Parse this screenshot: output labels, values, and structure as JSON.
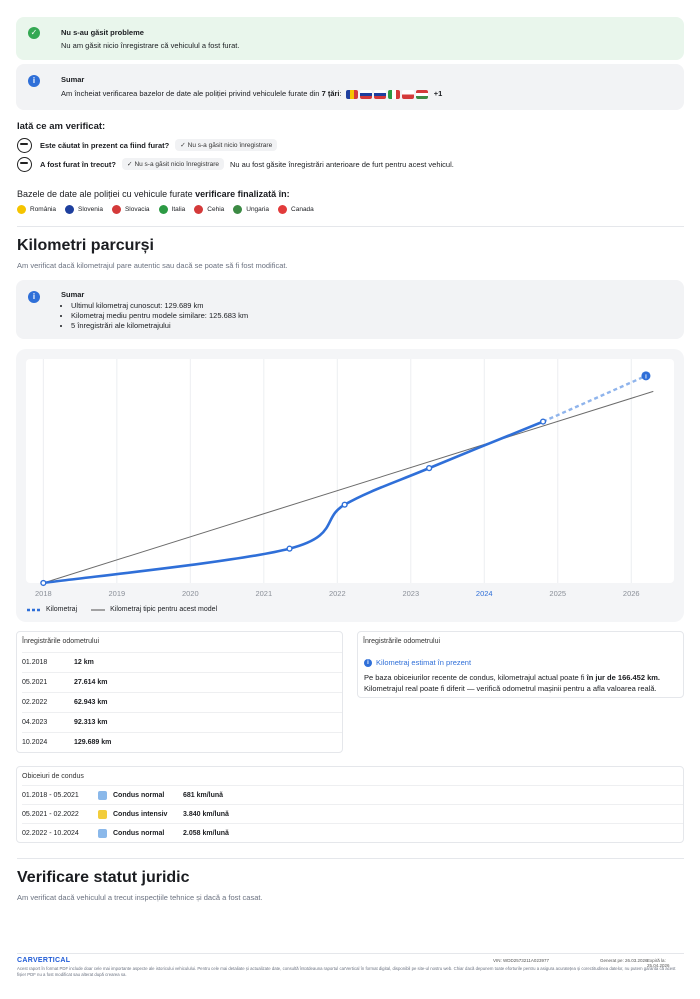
{
  "no_problems": {
    "title": "Nu s-au găsit probleme",
    "text": "Nu am găsit nicio înregistrare că vehiculul a fost furat."
  },
  "summary": {
    "title": "Sumar",
    "text_prefix": "Am încheiat verificarea bazelor de date ale poliției privind vehiculele furate din",
    "text_bold": "7 țări",
    "more": "+1"
  },
  "checked": {
    "heading": "Iată ce am verificat:",
    "q1": "Este căutat în prezent ca fiind furat?",
    "q1_chip": "Nu s-a găsit nicio înregistrare",
    "q2": "A fost furat în trecut?",
    "q2_chip": "Nu s-a găsit nicio înregistrare",
    "q2_note": "Nu au fost găsite înregistrări anterioare de furt pentru acest vehicul."
  },
  "databases": {
    "title_prefix": "Bazele de date ale poliției cu vehicule furate",
    "title_bold": "verificare finalizată în:",
    "countries": [
      {
        "name": "România",
        "color": "#f5c400"
      },
      {
        "name": "Slovenia",
        "color": "#1e3f9e"
      },
      {
        "name": "Slovacia",
        "color": "#d43a3a"
      },
      {
        "name": "Italia",
        "color": "#2c9a44"
      },
      {
        "name": "Cehia",
        "color": "#d43a3a"
      },
      {
        "name": "Ungaria",
        "color": "#3c8a44"
      },
      {
        "name": "Canada",
        "color": "#e23b3b"
      }
    ]
  },
  "mileage": {
    "title": "Kilometri parcurși",
    "subtitle": "Am verificat dacă kilometrajul pare autentic sau dacă se poate să fi fost modificat.",
    "summary_title": "Sumar",
    "bullets": [
      "Ultimul kilometraj cunoscut: 129.689 km",
      "Kilometraj mediu pentru modele similare: 125.683 km",
      "5 înregistrări ale kilometrajului"
    ]
  },
  "chart_data": {
    "type": "line",
    "x_ticks": [
      "2018",
      "2019",
      "2020",
      "2021",
      "2022",
      "2023",
      "2024",
      "2025",
      "2026"
    ],
    "highlight_tick": "2024",
    "series": [
      {
        "name": "Kilometraj",
        "color": "#2f6fd8",
        "points": [
          [
            2018.0,
            12
          ],
          [
            2021.35,
            27614
          ],
          [
            2022.1,
            62943
          ],
          [
            2023.25,
            92313
          ],
          [
            2024.8,
            129689
          ]
        ],
        "estimate": [
          2026.2,
          166452
        ]
      },
      {
        "name": "Kilometraj tipic pentru acest model",
        "color": "#6b6b6b",
        "points": [
          [
            2018.0,
            0
          ],
          [
            2026.3,
            154000
          ]
        ]
      }
    ],
    "xlim": [
      2017.9,
      2026.5
    ],
    "ylim": [
      0,
      180000
    ],
    "grid": true,
    "legend": "bottom-left"
  },
  "odometer": {
    "header": "Înregistrările odometrului",
    "rows": [
      {
        "date": "01.2018",
        "km": "12 km"
      },
      {
        "date": "05.2021",
        "km": "27.614 km"
      },
      {
        "date": "02.2022",
        "km": "62.943 km"
      },
      {
        "date": "04.2023",
        "km": "92.313 km"
      },
      {
        "date": "10.2024",
        "km": "129.689 km"
      }
    ]
  },
  "estimate": {
    "header": "Înregistrările odometrului",
    "title": "Kilometraj estimat în prezent",
    "text_prefix": "Pe baza obiceiurilor recente de condus, kilometrajul actual poate fi",
    "text_bold": "în jur de 166.452 km.",
    "text_suffix": "Kilometrajul real poate fi diferit — verifică odometrul mașinii pentru a afla valoarea reală."
  },
  "habits": {
    "header": "Obiceiuri de condus",
    "rows": [
      {
        "period": "01.2018 - 05.2021",
        "label": "Condus normal",
        "rate": "681 km/lună",
        "color": "#8ab8ea"
      },
      {
        "period": "05.2021 - 02.2022",
        "label": "Condus intensiv",
        "rate": "3.840 km/lună",
        "color": "#f2cd3c"
      },
      {
        "period": "02.2022 - 10.2024",
        "label": "Condus normal",
        "rate": "2.058 km/lună",
        "color": "#8ab8ea"
      }
    ]
  },
  "legal": {
    "title": "Verificare statut juridic",
    "subtitle": "Am verificat dacă vehiculul a trecut inspecțiile tehnice și dacă a fost casat."
  },
  "footer": {
    "logo": "CARVERTICAL",
    "vin": "VIN: WDD2573211A023977",
    "generated": "Generat pe: 26.03.2026",
    "expires": "Expiră la: 25.04.2026",
    "text": "Acest raport în format PDF include doar cele mai importante aspecte ale istoricului vehiculului. Pentru cele mai detaliate și actualizate date, consultă întotdeauna raportul carVertical în format digital, disponibil pe site-ul nostru web. Chiar dacă depunem toate eforturile pentru a asigura acuratețea și corectitudinea datelor, nu putem garanta că acest fișier PDF nu a fost modificat sau alterat după crearea sa."
  }
}
